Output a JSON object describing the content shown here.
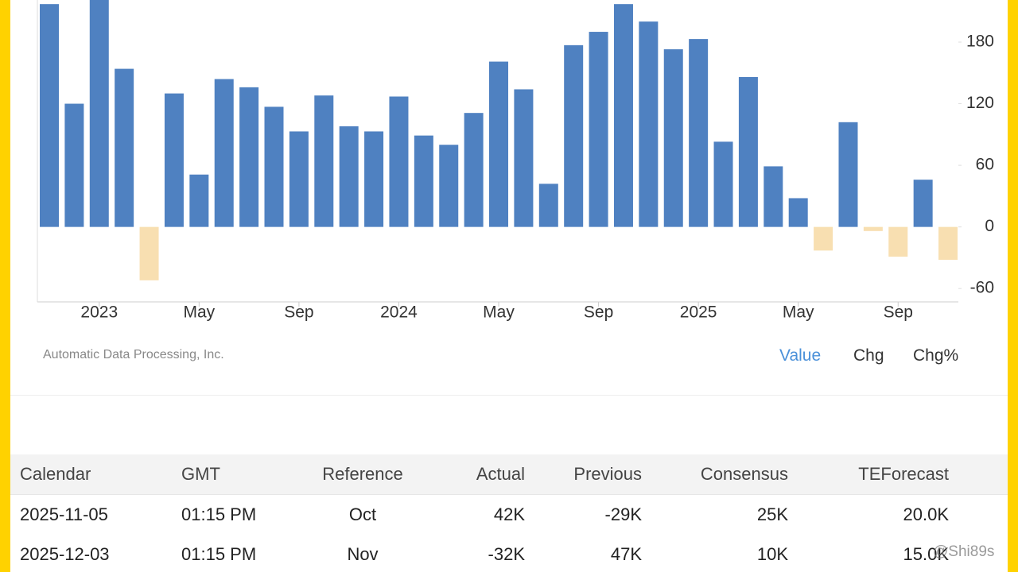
{
  "chart_data": {
    "type": "bar",
    "categories": [
      null,
      null,
      "2023",
      null,
      null,
      null,
      "May",
      null,
      null,
      null,
      "Sep",
      null,
      null,
      null,
      "2024",
      null,
      null,
      null,
      "May",
      null,
      null,
      null,
      "Sep",
      null,
      null,
      null,
      "2025",
      null,
      null,
      null,
      "May",
      null,
      null,
      null,
      "Sep",
      null,
      null
    ],
    "values": [
      217,
      120,
      230,
      154,
      -52,
      130,
      51,
      144,
      136,
      117,
      93,
      128,
      98,
      93,
      127,
      89,
      80,
      111,
      161,
      134,
      42,
      177,
      190,
      217,
      200,
      173,
      183,
      83,
      146,
      59,
      28,
      -23,
      102,
      -4,
      -29,
      46,
      -32
    ],
    "color": "#4f81c1",
    "negative_color": "#f8dfb1",
    "ylim": [
      -73,
      221
    ],
    "yticks": [
      -60,
      0,
      60,
      120,
      180
    ],
    "y_axis_side": "right"
  },
  "source": "Automatic Data Processing, Inc.",
  "tabs": [
    "Value",
    "Chg",
    "Chg%"
  ],
  "table": {
    "header": [
      "Calendar",
      "GMT",
      "Reference",
      "Actual",
      "Previous",
      "Consensus",
      "TEForecast"
    ],
    "rows": [
      [
        "2025-11-05",
        "01:15 PM",
        "Oct",
        "42K",
        "-29K",
        "25K",
        "20.0K"
      ],
      [
        "2025-12-03",
        "01:15 PM",
        "Nov",
        "-32K",
        "47K",
        "10K",
        "15.0K"
      ]
    ]
  },
  "watermark": "@Shi89s"
}
